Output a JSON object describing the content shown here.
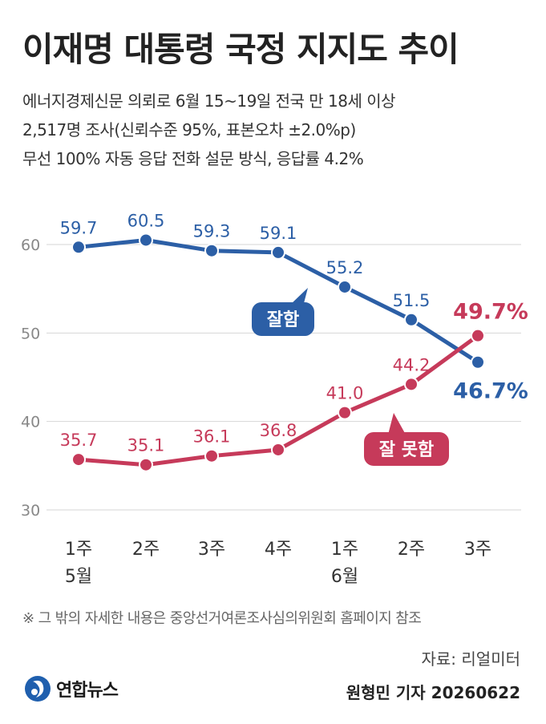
{
  "header": {
    "title": "이재명 대통령 국정 지지도 추이",
    "subtitle_lines": [
      "에너지경제신문 의뢰로 6월 15~19일 전국 만 18세 이상",
      "2,517명 조사(신뢰수준 95%, 표본오차 ±2.0%p)",
      "무선 100% 자동 응답 전화 설문 방식, 응답률 4.2%"
    ]
  },
  "footer": {
    "note": "※ 그 밖의 자세한 내용은 중앙선거여론조사심의위원회 홈페이지 참조",
    "source": "자료: 리얼미터",
    "reporter": "원형민 기자 20260622",
    "logo_text": "연합뉴스",
    "logo_icon": "yonhap-logo-icon"
  },
  "colors": {
    "approve": "#2c5fa6",
    "disapprove": "#c63a5a",
    "grid": "#d6d6d6",
    "axis_text": "#888888"
  },
  "chart_data": {
    "type": "line",
    "x_week_labels": [
      "1주",
      "2주",
      "3주",
      "4주",
      "1주",
      "2주",
      "3주"
    ],
    "x_month_labels": [
      "5월",
      "",
      "",
      "",
      "6월",
      "",
      ""
    ],
    "ylim": [
      30,
      60
    ],
    "yticks": [
      30,
      40,
      50,
      60
    ],
    "grid": true,
    "series": [
      {
        "name": "잘함",
        "values": [
          59.7,
          60.5,
          59.3,
          59.1,
          55.2,
          51.5,
          46.7
        ],
        "labels": [
          "59.7",
          "60.5",
          "59.3",
          "59.1",
          "55.2",
          "51.5",
          "46.7%"
        ]
      },
      {
        "name": "잘 못함",
        "values": [
          35.7,
          35.1,
          36.1,
          36.8,
          41.0,
          44.2,
          49.7
        ],
        "labels": [
          "35.7",
          "35.1",
          "36.1",
          "36.8",
          "41.0",
          "44.2",
          "49.7%"
        ]
      }
    ]
  }
}
